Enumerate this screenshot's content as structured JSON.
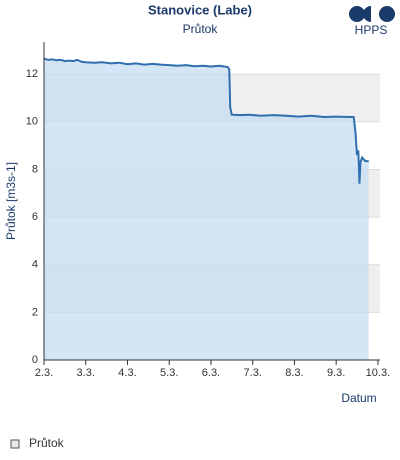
{
  "logo": "HPPS",
  "chart_data": {
    "type": "area",
    "title": "Stanovice (Labe)",
    "subtitle": "Průtok",
    "x_label": "Datum",
    "y_label": "Průtok [m3s-1]",
    "x": [
      2.0,
      2.1,
      2.2,
      2.3,
      2.4,
      2.5,
      2.6,
      2.7,
      2.8,
      2.9,
      3.0,
      3.2,
      3.4,
      3.6,
      3.8,
      4.0,
      4.2,
      4.4,
      4.6,
      4.8,
      5.0,
      5.2,
      5.4,
      5.6,
      5.8,
      6.0,
      6.2,
      6.4,
      6.44,
      6.46,
      6.5,
      6.7,
      6.9,
      7.2,
      7.5,
      7.8,
      8.1,
      8.4,
      8.7,
      9.0,
      9.3,
      9.42,
      9.46,
      9.5,
      9.53,
      9.56,
      9.58,
      9.62,
      9.7,
      9.78
    ],
    "series": [
      {
        "name": "Průtok",
        "color": "#2f6fb0",
        "fill": "#c5dcf2",
        "values": [
          12.65,
          12.6,
          12.62,
          12.58,
          12.6,
          12.55,
          12.57,
          12.55,
          12.6,
          12.52,
          12.5,
          12.48,
          12.5,
          12.45,
          12.48,
          12.42,
          12.45,
          12.4,
          12.43,
          12.4,
          12.38,
          12.35,
          12.38,
          12.33,
          12.35,
          12.32,
          12.35,
          12.3,
          12.2,
          10.6,
          10.3,
          10.28,
          10.3,
          10.25,
          10.28,
          10.25,
          10.22,
          10.25,
          10.2,
          10.22,
          10.2,
          10.2,
          9.6,
          8.6,
          8.8,
          7.4,
          8.3,
          8.5,
          8.35,
          8.35
        ]
      }
    ],
    "xlim": [
      2,
      10.05
    ],
    "xticks": [
      {
        "value": 2,
        "label": "2.3."
      },
      {
        "value": 3,
        "label": "3.3."
      },
      {
        "value": 4,
        "label": "4.3."
      },
      {
        "value": 5,
        "label": "5.3."
      },
      {
        "value": 6,
        "label": "6.3."
      },
      {
        "value": 7,
        "label": "7.3."
      },
      {
        "value": 8,
        "label": "8.3."
      },
      {
        "value": 9,
        "label": "9.3."
      },
      {
        "value": 10,
        "label": "10.3."
      }
    ],
    "ylim": [
      0,
      13.35
    ],
    "yticks": [
      0,
      2,
      4,
      6,
      8,
      10,
      12
    ],
    "grid": true
  }
}
